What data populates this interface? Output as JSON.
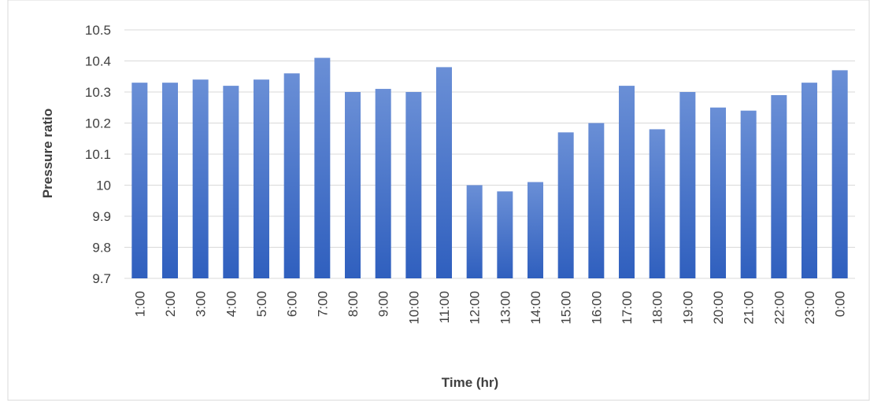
{
  "chart_data": {
    "type": "bar",
    "title": "",
    "xlabel": "Time (hr)",
    "ylabel": "Pressure  ratio",
    "ylim": [
      9.7,
      10.5
    ],
    "yticks": [
      9.7,
      9.8,
      9.9,
      10,
      10.1,
      10.2,
      10.3,
      10.4,
      10.5
    ],
    "ytick_labels": [
      "9.7",
      "9.8",
      "9.9",
      "10",
      "10.1",
      "10.2",
      "10.3",
      "10.4",
      "10.5"
    ],
    "grid": true,
    "legend": "none",
    "bar_color_top": "#6a8fd6",
    "bar_color_bottom": "#2f5fbe",
    "categories": [
      "1:00",
      "2:00",
      "3:00",
      "4:00",
      "5:00",
      "6:00",
      "7:00",
      "8:00",
      "9:00",
      "10:00",
      "11:00",
      "12:00",
      "13:00",
      "14:00",
      "15:00",
      "16:00",
      "17:00",
      "18:00",
      "19:00",
      "20:00",
      "21:00",
      "22:00",
      "23:00",
      "0:00"
    ],
    "values": [
      10.33,
      10.33,
      10.34,
      10.32,
      10.34,
      10.36,
      10.41,
      10.3,
      10.31,
      10.3,
      10.38,
      10.0,
      9.98,
      10.01,
      10.17,
      10.2,
      10.32,
      10.18,
      10.3,
      10.25,
      10.24,
      10.29,
      10.33,
      10.37
    ]
  }
}
